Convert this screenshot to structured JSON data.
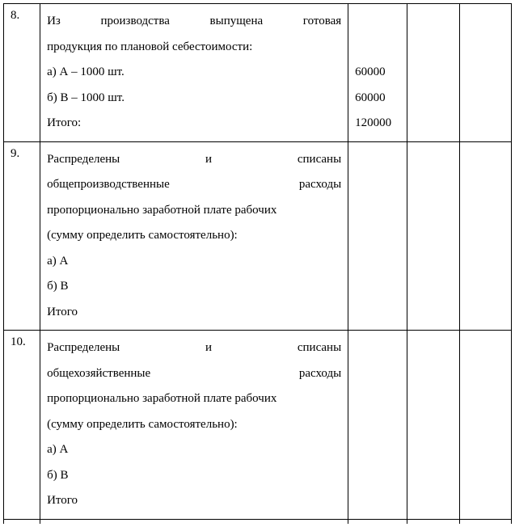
{
  "table": {
    "rows": [
      {
        "num": "8.",
        "desc_lines": [
          {
            "text": "Из производства выпущена готовая",
            "justify": true
          },
          {
            "text": "продукция по плановой себестоимости:",
            "justify": false
          },
          {
            "text": "а) А – 1000 шт.",
            "justify": false
          },
          {
            "text": "б) В – 1000 шт.",
            "justify": false
          },
          {
            "text": "Итого:",
            "justify": false
          }
        ],
        "val1_lines": [
          "",
          "",
          "60000",
          "60000",
          "120000"
        ],
        "val2": "",
        "val3": ""
      },
      {
        "num": "9.",
        "desc_lines": [
          {
            "text": "Распределены и списаны",
            "justify": true
          },
          {
            "text": "общепроизводственные расходы",
            "justify": true
          },
          {
            "text": "пропорционально заработной плате рабочих",
            "justify": false
          },
          {
            "text": "(сумму определить самостоятельно):",
            "justify": false
          },
          {
            "text": "а) А",
            "justify": false
          },
          {
            "text": "б) В",
            "justify": false
          },
          {
            "text": "Итого",
            "justify": false
          }
        ],
        "val1_lines": [],
        "val2": "",
        "val3": ""
      },
      {
        "num": "10.",
        "desc_lines": [
          {
            "text": "Распределены и списаны",
            "justify": true
          },
          {
            "text": "общехозяйственные расходы",
            "justify": true
          },
          {
            "text": "пропорционально заработной плате рабочих",
            "justify": false
          },
          {
            "text": "(сумму определить самостоятельно):",
            "justify": false
          },
          {
            "text": "а) А",
            "justify": false
          },
          {
            "text": "б) В",
            "justify": false
          },
          {
            "text": "Итого",
            "justify": false
          }
        ],
        "val1_lines": [],
        "val2": "",
        "val3": ""
      }
    ]
  }
}
